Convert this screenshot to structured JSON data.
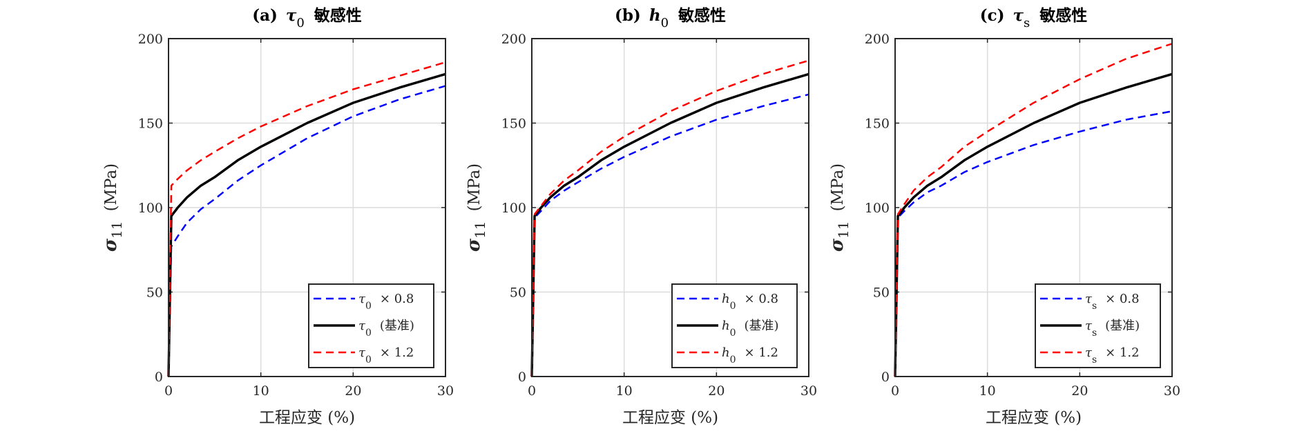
{
  "chart_data": [
    {
      "type": "line",
      "title": {
        "prefix": "(a)",
        "symbol": "τ",
        "sub": "0",
        "suffix": "敏感性"
      },
      "xlabel": "工程应变 (%)",
      "ylabel": {
        "symbol": "σ",
        "sub": "11",
        "suffix": "(MPa)"
      },
      "xlim": [
        0,
        30
      ],
      "ylim": [
        0,
        200
      ],
      "xticks": [
        "0",
        "10",
        "20",
        "30"
      ],
      "yticks": [
        "0",
        "50",
        "100",
        "150",
        "200"
      ],
      "grid": true,
      "legend_placement": "bottom-right",
      "x": [
        0,
        0.3,
        1,
        2,
        3.5,
        5,
        7.5,
        10,
        15,
        20,
        25,
        30
      ],
      "series": [
        {
          "name": {
            "symbol": "τ",
            "sub": "0",
            "suffix": "× 0.8"
          },
          "color": "#0000ff",
          "style": "dashed",
          "values": [
            0,
            77,
            83,
            91,
            99,
            105,
            116,
            125,
            141,
            154,
            164,
            172
          ]
        },
        {
          "name": {
            "symbol": "τ",
            "sub": "0",
            "suffix": "(基准)"
          },
          "color": "#000000",
          "style": "solid",
          "values": [
            0,
            95,
            100,
            106,
            113,
            118,
            128,
            136,
            150,
            162,
            171,
            179
          ]
        },
        {
          "name": {
            "symbol": "τ",
            "sub": "0",
            "suffix": "× 1.2"
          },
          "color": "#ff0000",
          "style": "dashed",
          "values": [
            0,
            113,
            117,
            122,
            128,
            133,
            141,
            148,
            160,
            170,
            178,
            186
          ]
        }
      ]
    },
    {
      "type": "line",
      "title": {
        "prefix": "(b)",
        "symbol": "h",
        "sub": "0",
        "suffix": "敏感性"
      },
      "xlabel": "工程应变 (%)",
      "ylabel": {
        "symbol": "σ",
        "sub": "11",
        "suffix": "(MPa)"
      },
      "xlim": [
        0,
        30
      ],
      "ylim": [
        0,
        200
      ],
      "xticks": [
        "0",
        "10",
        "20",
        "30"
      ],
      "yticks": [
        "0",
        "50",
        "100",
        "150",
        "200"
      ],
      "grid": true,
      "legend_placement": "bottom-right",
      "x": [
        0,
        0.3,
        1,
        2,
        3.5,
        5,
        7.5,
        10,
        15,
        20,
        25,
        30
      ],
      "series": [
        {
          "name": {
            "symbol": "h",
            "sub": "0",
            "suffix": "× 0.8"
          },
          "color": "#0000ff",
          "style": "dashed",
          "values": [
            0,
            94,
            98,
            104,
            110,
            115,
            123,
            130,
            142,
            152,
            160,
            167
          ]
        },
        {
          "name": {
            "symbol": "h",
            "sub": "0",
            "suffix": "(基准)"
          },
          "color": "#000000",
          "style": "solid",
          "values": [
            0,
            95,
            100,
            106,
            113,
            118,
            128,
            136,
            150,
            162,
            171,
            179
          ]
        },
        {
          "name": {
            "symbol": "h",
            "sub": "0",
            "suffix": "× 1.2"
          },
          "color": "#ff0000",
          "style": "dashed",
          "values": [
            0,
            96,
            101,
            108,
            116,
            122,
            133,
            142,
            157,
            169,
            179,
            187
          ]
        }
      ]
    },
    {
      "type": "line",
      "title": {
        "prefix": "(c)",
        "symbol": "τ",
        "sub": "s",
        "suffix": "敏感性"
      },
      "xlabel": "工程应变 (%)",
      "ylabel": {
        "symbol": "σ",
        "sub": "11",
        "suffix": "(MPa)"
      },
      "xlim": [
        0,
        30
      ],
      "ylim": [
        0,
        200
      ],
      "xticks": [
        "0",
        "10",
        "20",
        "30"
      ],
      "yticks": [
        "0",
        "50",
        "100",
        "150",
        "200"
      ],
      "grid": true,
      "legend_placement": "bottom-right",
      "x": [
        0,
        0.3,
        1,
        2,
        3.5,
        5,
        7.5,
        10,
        15,
        20,
        25,
        30
      ],
      "series": [
        {
          "name": {
            "symbol": "τ",
            "sub": "s",
            "suffix": "× 0.8"
          },
          "color": "#0000ff",
          "style": "dashed",
          "values": [
            0,
            94,
            98,
            103,
            109,
            113,
            121,
            127,
            137,
            145,
            152,
            157
          ]
        },
        {
          "name": {
            "symbol": "τ",
            "sub": "s",
            "suffix": "(基准)"
          },
          "color": "#000000",
          "style": "solid",
          "values": [
            0,
            95,
            100,
            106,
            113,
            118,
            128,
            136,
            150,
            162,
            171,
            179
          ]
        },
        {
          "name": {
            "symbol": "τ",
            "sub": "s",
            "suffix": "× 1.2"
          },
          "color": "#ff0000",
          "style": "dashed",
          "values": [
            0,
            96,
            102,
            110,
            118,
            124,
            136,
            145,
            162,
            176,
            188,
            197
          ]
        }
      ]
    }
  ]
}
